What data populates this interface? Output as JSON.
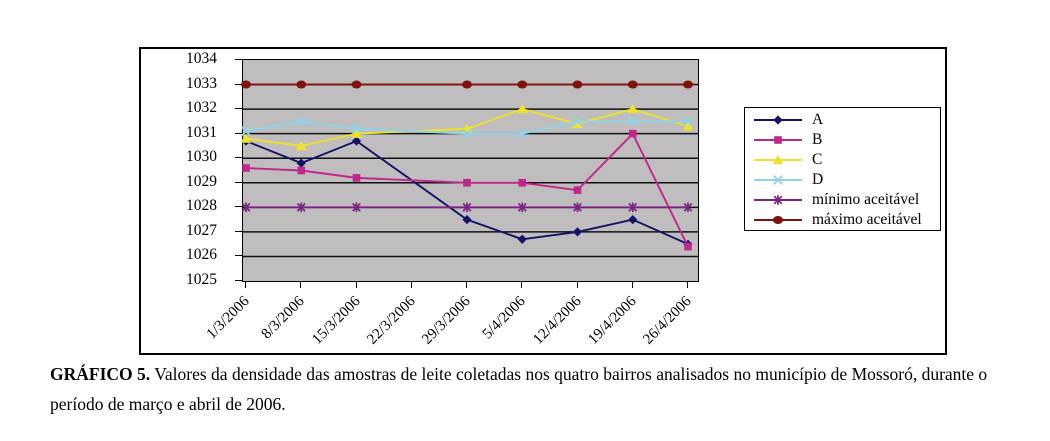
{
  "chart_data": {
    "type": "line",
    "title": "",
    "xlabel": "",
    "ylabel": "",
    "categories": [
      "1/3/2006",
      "8/3/2006",
      "15/3/2006",
      "22/3/2006",
      "29/3/2006",
      "5/4/2006",
      "12/4/2006",
      "19/4/2006",
      "26/4/2006"
    ],
    "y_ticks": [
      "1025",
      "1026",
      "1027",
      "1028",
      "1029",
      "1030",
      "1031",
      "1032",
      "1033",
      "1034"
    ],
    "ylim": [
      1025,
      1034
    ],
    "grid": true,
    "legend_position": "right",
    "plot_bg": "#BFBDBD",
    "series": [
      {
        "name": "A",
        "color": "#131366",
        "marker": "diamond",
        "values": [
          1030.7,
          1029.8,
          1030.7,
          null,
          1027.5,
          1026.7,
          1027.0,
          1027.5,
          1026.5
        ]
      },
      {
        "name": "B",
        "color": "#C0278C",
        "marker": "square",
        "values": [
          1029.6,
          1029.5,
          1029.2,
          null,
          1029.0,
          1029.0,
          1028.7,
          1031.0,
          1026.4
        ]
      },
      {
        "name": "C",
        "color": "#EFE22E",
        "marker": "triangle",
        "values": [
          1030.8,
          1030.5,
          1031.0,
          null,
          1031.2,
          1032.0,
          1031.4,
          1032.0,
          1031.3
        ]
      },
      {
        "name": "D",
        "color": "#8FD3EA",
        "marker": "x",
        "values": [
          1031.1,
          1031.5,
          1031.2,
          null,
          1031.0,
          1031.0,
          1031.5,
          1031.5,
          1031.5
        ]
      },
      {
        "name": "mínimo aceitável",
        "color": "#7A2483",
        "marker": "asterisk",
        "values": [
          1028,
          1028,
          1028,
          null,
          1028,
          1028,
          1028,
          1028,
          1028
        ]
      },
      {
        "name": "máximo aceitável",
        "color": "#7E130E",
        "marker": "circle",
        "values": [
          1033,
          1033,
          1033,
          null,
          1033,
          1033,
          1033,
          1033,
          1033
        ]
      }
    ]
  },
  "caption": {
    "label": "GRÁFICO 5.",
    "text": "Valores da densidade das amostras de leite coletadas nos quatro bairros analisados no município de Mossoró, durante o período de março e abril de 2006."
  }
}
